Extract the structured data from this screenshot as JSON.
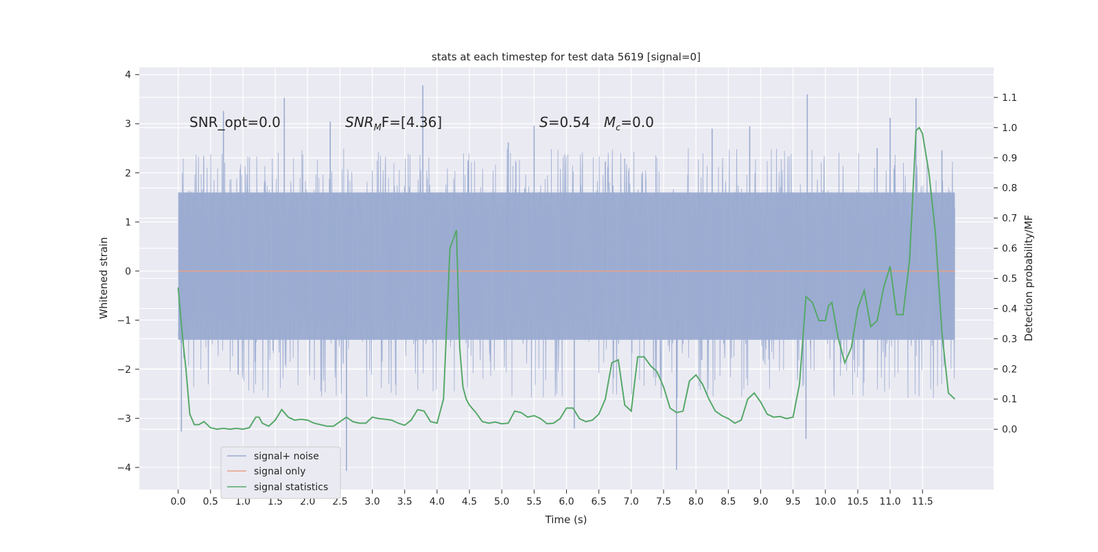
{
  "chart_data": {
    "type": "line",
    "title": "stats at each timestep for test data 5619 [signal=0]",
    "xlabel": "Time (s)",
    "ylabel_left": "Whitened strain",
    "ylabel_right": "Detection probability/MF",
    "xlim": [
      -0.6,
      12.6
    ],
    "ylim_left": [
      -4.45,
      4.15
    ],
    "ylim_right": [
      -0.2,
      1.2
    ],
    "x_ticks": [
      "0.0",
      "0.5",
      "1.0",
      "1.5",
      "2.0",
      "2.5",
      "3.0",
      "3.5",
      "4.0",
      "4.5",
      "5.0",
      "5.5",
      "6.0",
      "6.5",
      "7.0",
      "7.5",
      "8.0",
      "8.5",
      "9.0",
      "9.5",
      "10.0",
      "10.5",
      "11.0",
      "11.5"
    ],
    "y_ticks_left": [
      "4",
      "3",
      "2",
      "1",
      "0",
      "−1",
      "−2",
      "−3",
      "−4"
    ],
    "y_ticks_right": [
      "1.1",
      "1.0",
      "0.9",
      "0.8",
      "0.7",
      "0.6",
      "0.5",
      "0.4",
      "0.3",
      "0.2",
      "0.1",
      "0.0"
    ],
    "grid": true,
    "legend_position": "bottom-left",
    "annotations": {
      "snr_opt": "SNR_opt=0.0",
      "snr_mf_base": "SNR",
      "snr_mf_sub": "M",
      "snr_mf_tail": "F=[4.36]",
      "s_label": "S",
      "s_value": "=0.54",
      "mc_label": "M",
      "mc_sub": "c",
      "mc_value": "=0.0"
    },
    "series": [
      {
        "name": "signal+ noise",
        "color": "#9aabd0",
        "axis": "left",
        "x_range": [
          0.0,
          12.0
        ],
        "envelope_typical": [
          -1.4,
          1.6
        ],
        "extremes": [
          [
            0.05,
            -3.27
          ],
          [
            0.7,
            3.26
          ],
          [
            1.64,
            3.53
          ],
          [
            2.35,
            3.04
          ],
          [
            2.6,
            -4.07
          ],
          [
            3.78,
            3.78
          ],
          [
            4.48,
            2.25
          ],
          [
            5.1,
            2.62
          ],
          [
            5.5,
            2.96
          ],
          [
            6.12,
            -3.21
          ],
          [
            6.6,
            2.23
          ],
          [
            7.7,
            -4.05
          ],
          [
            8.25,
            2.9
          ],
          [
            8.83,
            2.95
          ],
          [
            9.72,
            3.6
          ],
          [
            9.7,
            -3.42
          ],
          [
            10.8,
            2.5
          ],
          [
            11.0,
            3.12
          ],
          [
            11.4,
            3.52
          ],
          [
            11.8,
            2.46
          ]
        ]
      },
      {
        "name": "signal only",
        "color": "#e8a085",
        "axis": "left",
        "x": [
          0.0,
          12.0
        ],
        "y": [
          0.0,
          0.0
        ]
      },
      {
        "name": "signal statistics",
        "color": "#55a868",
        "axis": "right",
        "x": [
          0.0,
          0.07,
          0.12,
          0.18,
          0.25,
          0.32,
          0.4,
          0.5,
          0.6,
          0.7,
          0.8,
          0.9,
          1.0,
          1.1,
          1.2,
          1.25,
          1.3,
          1.4,
          1.5,
          1.6,
          1.7,
          1.8,
          1.9,
          2.0,
          2.1,
          2.2,
          2.3,
          2.4,
          2.5,
          2.6,
          2.7,
          2.8,
          2.9,
          3.0,
          3.1,
          3.2,
          3.3,
          3.4,
          3.5,
          3.6,
          3.7,
          3.8,
          3.9,
          4.0,
          4.1,
          4.2,
          4.3,
          4.35,
          4.4,
          4.45,
          4.5,
          4.6,
          4.7,
          4.8,
          4.9,
          5.0,
          5.1,
          5.2,
          5.3,
          5.4,
          5.5,
          5.6,
          5.7,
          5.8,
          5.9,
          6.0,
          6.1,
          6.2,
          6.3,
          6.4,
          6.5,
          6.6,
          6.7,
          6.8,
          6.9,
          7.0,
          7.1,
          7.2,
          7.3,
          7.4,
          7.5,
          7.6,
          7.7,
          7.8,
          7.9,
          8.0,
          8.1,
          8.2,
          8.3,
          8.4,
          8.5,
          8.6,
          8.7,
          8.8,
          8.9,
          9.0,
          9.1,
          9.2,
          9.3,
          9.4,
          9.5,
          9.6,
          9.7,
          9.8,
          9.9,
          10.0,
          10.05,
          10.1,
          10.2,
          10.3,
          10.4,
          10.5,
          10.6,
          10.7,
          10.8,
          10.9,
          11.0,
          11.1,
          11.2,
          11.3,
          11.4,
          11.45,
          11.5,
          11.6,
          11.7,
          11.8,
          11.9,
          12.0
        ],
        "y": [
          0.47,
          0.3,
          0.2,
          0.05,
          0.015,
          0.015,
          0.025,
          0.005,
          0.0,
          0.003,
          0.0,
          0.003,
          0.0,
          0.005,
          0.04,
          0.04,
          0.02,
          0.01,
          0.03,
          0.065,
          0.04,
          0.03,
          0.033,
          0.03,
          0.02,
          0.015,
          0.01,
          0.01,
          0.025,
          0.04,
          0.025,
          0.02,
          0.02,
          0.04,
          0.035,
          0.033,
          0.03,
          0.02,
          0.013,
          0.03,
          0.065,
          0.06,
          0.025,
          0.02,
          0.1,
          0.6,
          0.66,
          0.27,
          0.14,
          0.1,
          0.08,
          0.055,
          0.025,
          0.02,
          0.024,
          0.018,
          0.02,
          0.06,
          0.055,
          0.04,
          0.045,
          0.035,
          0.018,
          0.02,
          0.035,
          0.07,
          0.07,
          0.035,
          0.025,
          0.03,
          0.05,
          0.1,
          0.22,
          0.23,
          0.08,
          0.06,
          0.24,
          0.24,
          0.21,
          0.19,
          0.14,
          0.07,
          0.055,
          0.06,
          0.16,
          0.18,
          0.15,
          0.1,
          0.06,
          0.045,
          0.035,
          0.02,
          0.03,
          0.1,
          0.12,
          0.09,
          0.05,
          0.04,
          0.042,
          0.035,
          0.04,
          0.15,
          0.44,
          0.42,
          0.36,
          0.36,
          0.41,
          0.42,
          0.3,
          0.22,
          0.27,
          0.4,
          0.46,
          0.34,
          0.36,
          0.47,
          0.54,
          0.38,
          0.38,
          0.56,
          0.99,
          1.0,
          0.98,
          0.85,
          0.65,
          0.32,
          0.12,
          0.1
        ]
      }
    ]
  }
}
